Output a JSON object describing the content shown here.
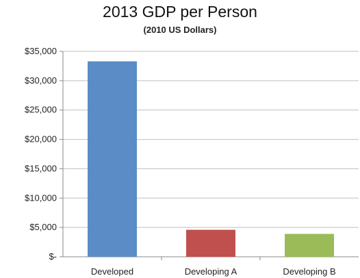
{
  "chart_data": {
    "type": "bar",
    "title": "2013 GDP per Person",
    "subtitle": "(2010 US Dollars)",
    "categories": [
      "Developed",
      "Developing A",
      "Developing B"
    ],
    "values": [
      33300,
      4600,
      3900
    ],
    "colors": [
      "#5b8cc6",
      "#c0504d",
      "#9bbb59"
    ],
    "ylim": [
      0,
      35000
    ],
    "yticks": [
      0,
      5000,
      10000,
      15000,
      20000,
      25000,
      30000,
      35000
    ],
    "ytick_labels": [
      "$-",
      "$5,000",
      "$10,000",
      "$15,000",
      "$20,000",
      "$25,000",
      "$30,000",
      "$35,000"
    ],
    "grid": true
  }
}
